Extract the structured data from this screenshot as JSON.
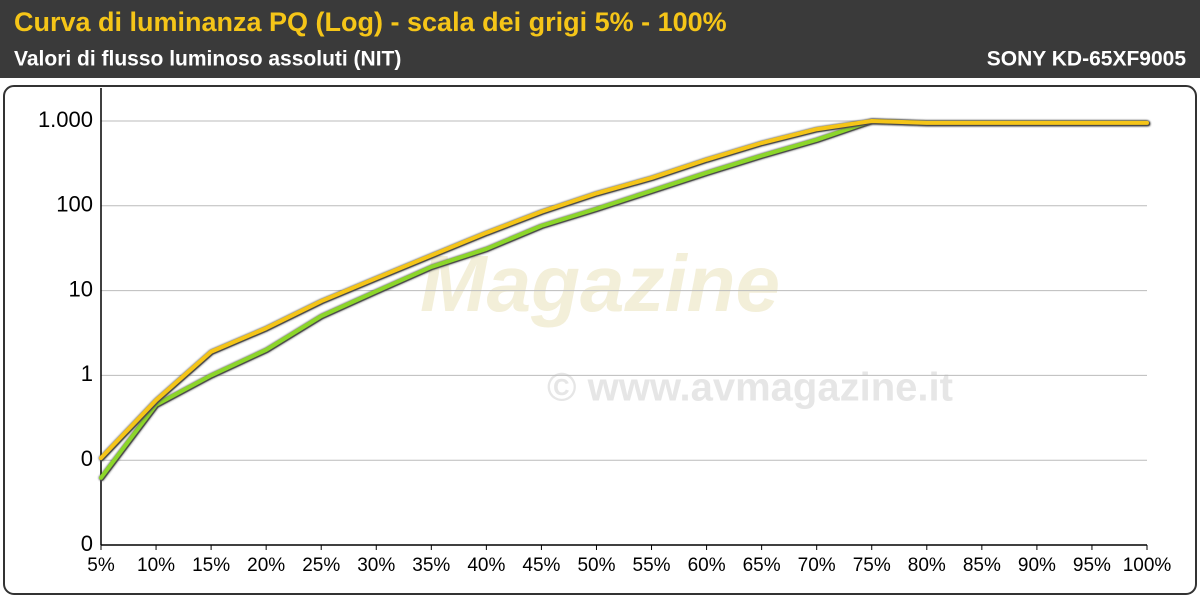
{
  "chart_data": {
    "type": "line",
    "title": "Curva di luminanza PQ (Log) - scala dei grigi 5% - 100%",
    "subtitle": "Valori di flusso luminoso assoluti (NIT)",
    "device": "SONY KD-65XF9005",
    "watermark": [
      "Magazine",
      "© www.avmagazine.it"
    ],
    "categories": [
      "5%",
      "10%",
      "15%",
      "20%",
      "25%",
      "30%",
      "35%",
      "40%",
      "45%",
      "50%",
      "55%",
      "60%",
      "65%",
      "70%",
      "75%",
      "80%",
      "85%",
      "90%",
      "95%",
      "100%"
    ],
    "series": [
      {
        "color": "#8cd62a",
        "values": [
          0.062,
          0.45,
          1.0,
          2.0,
          5,
          9.8,
          19,
          31,
          58,
          92,
          150,
          245,
          390,
          600,
          1000,
          950,
          950,
          950,
          950,
          950
        ]
      },
      {
        "color": "#f5c518",
        "values": [
          0.106,
          0.51,
          1.9,
          3.6,
          7.5,
          14,
          26,
          48,
          85,
          140,
          213,
          350,
          550,
          800,
          1000,
          950,
          950,
          950,
          950,
          950
        ]
      }
    ],
    "log_y": true,
    "ylim": [
      0.01,
      2450
    ],
    "yticks": [
      {
        "value": 0.01,
        "label": "0"
      },
      {
        "value": 0.1,
        "label": "0"
      },
      1,
      10,
      100,
      {
        "value": 1000,
        "label": "1.000"
      }
    ],
    "grid": true
  }
}
